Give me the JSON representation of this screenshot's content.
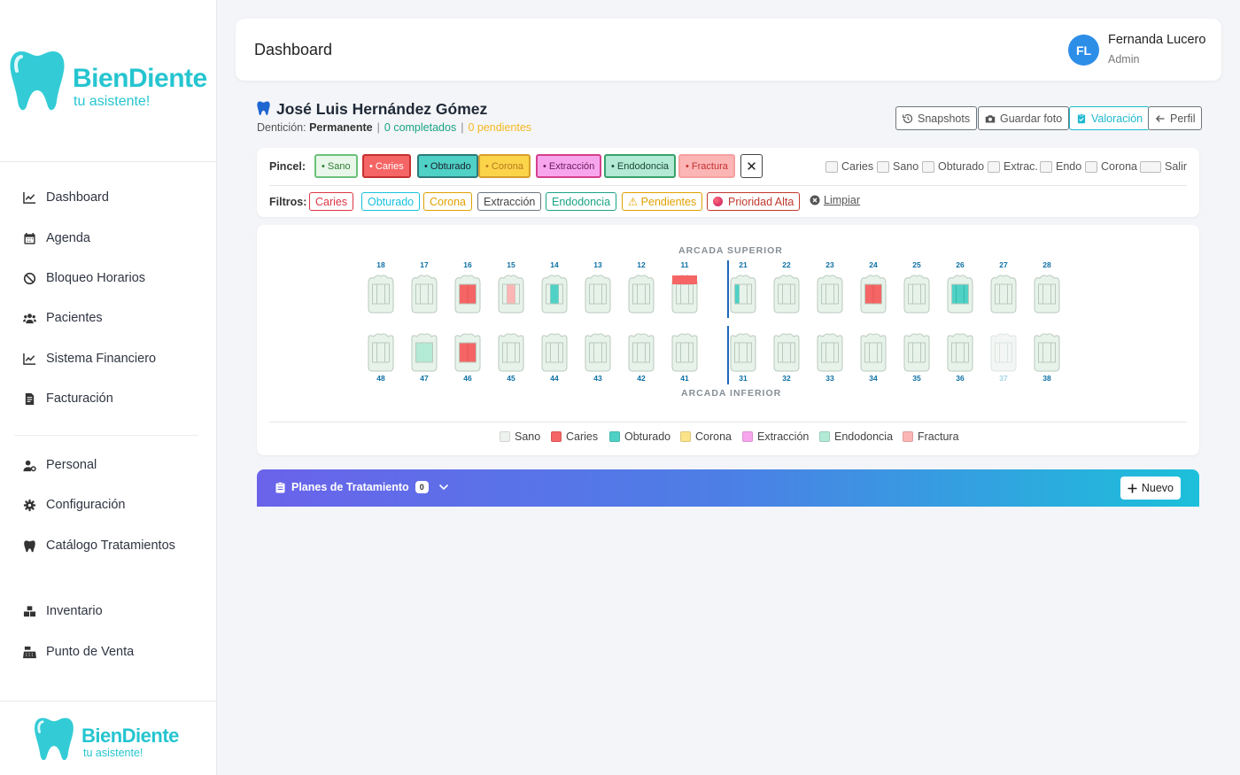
{
  "brand": {
    "name": "BienDiente",
    "tagline": "tu asistente!",
    "accent": "#25c5d0"
  },
  "sidebar": {
    "items": [
      {
        "label": "Dashboard",
        "icon": "chart-line-icon"
      },
      {
        "label": "Agenda",
        "icon": "calendar-icon"
      },
      {
        "label": "Bloqueo Horarios",
        "icon": "ban-icon"
      },
      {
        "label": "Pacientes",
        "icon": "users-icon"
      },
      {
        "label": "Sistema Financiero",
        "icon": "chart-line-icon"
      },
      {
        "label": "Facturación",
        "icon": "invoice-icon"
      },
      {
        "label": "Personal",
        "icon": "user-gear-icon"
      },
      {
        "label": "Configuración",
        "icon": "gear-icon"
      },
      {
        "label": "Catálogo Tratamientos",
        "icon": "tooth-icon"
      },
      {
        "label": "Inventario",
        "icon": "boxes-icon"
      },
      {
        "label": "Punto de Venta",
        "icon": "cash-register-icon"
      }
    ]
  },
  "header": {
    "title": "Dashboard",
    "user_initials": "FL",
    "user_name": "Fernanda Lucero",
    "user_role": "Admin"
  },
  "patient": {
    "name": "José Luis Hernández Gómez",
    "dentition_label": "Dentición:",
    "dentition": "Permanente",
    "completed": "0 completados",
    "pending": "0 pendientes",
    "separator": "|"
  },
  "actions": {
    "snapshots": "Snapshots",
    "save_photo": "Guardar foto",
    "assessment": "Valoración",
    "profile": "Perfil"
  },
  "brush": {
    "label": "Pincel:",
    "options": [
      {
        "label": "• Sano",
        "bg": "#e8f7ea",
        "border": "#6cc17a",
        "color": "#2e7d32"
      },
      {
        "label": "• Caries",
        "bg": "#f56565",
        "border": "#c53030",
        "color": "#ffffff"
      },
      {
        "label": "• Obturado",
        "bg": "#4fd1c5",
        "border": "#2c7a7b",
        "color": "#1a202c"
      },
      {
        "label": "• Corona",
        "bg": "#fbd44a",
        "border": "#d69e2e",
        "color": "#b7791f"
      },
      {
        "label": "• Extracción",
        "bg": "#f7a6ee",
        "border": "#d53f8c",
        "color": "#6b1a5a"
      },
      {
        "label": "• Endodoncia",
        "bg": "#b2ead6",
        "border": "#38a169",
        "color": "#1a4731"
      },
      {
        "label": "• Fractura",
        "bg": "#fcb5b5",
        "border": "#f5a0a0",
        "color": "#c53030"
      }
    ],
    "clear": "✕"
  },
  "toggles": [
    {
      "label": "Caries"
    },
    {
      "label": "Sano"
    },
    {
      "label": "Obturado"
    },
    {
      "label": "Extrac."
    },
    {
      "label": "Endo"
    },
    {
      "label": "Corona"
    },
    {
      "label": "Salir"
    }
  ],
  "filters": {
    "label": "Filtros:",
    "items": [
      {
        "label": "Caries",
        "color": "#dc3545"
      },
      {
        "label": "Obturado",
        "color": "#17c1dd"
      },
      {
        "label": "Corona",
        "color": "#e0a100"
      },
      {
        "label": "Extracción",
        "color": "#555555"
      },
      {
        "label": "Endodoncia",
        "color": "#1aa385"
      },
      {
        "label": "⚠ Pendientes",
        "color": "#e0a100"
      },
      {
        "label": "Prioridad Alta",
        "color": "#c0392b"
      }
    ],
    "clear": "Limpiar"
  },
  "odontogram": {
    "upper_label": "ARCADA SUPERIOR",
    "lower_label": "ARCADA INFERIOR",
    "upper": [
      {
        "n": "18",
        "s": "sano"
      },
      {
        "n": "17",
        "s": "sano"
      },
      {
        "n": "16",
        "s": "caries"
      },
      {
        "n": "15",
        "s": "fractura"
      },
      {
        "n": "14",
        "s": "obturado"
      },
      {
        "n": "13",
        "s": "sano"
      },
      {
        "n": "12",
        "s": "sano"
      },
      {
        "n": "11",
        "s": "caries-top"
      },
      {
        "n": "21",
        "s": "obturado-left"
      },
      {
        "n": "22",
        "s": "sano"
      },
      {
        "n": "23",
        "s": "sano"
      },
      {
        "n": "24",
        "s": "caries"
      },
      {
        "n": "25",
        "s": "sano"
      },
      {
        "n": "26",
        "s": "obturado-wide"
      },
      {
        "n": "27",
        "s": "sano"
      },
      {
        "n": "28",
        "s": "sano"
      }
    ],
    "lower": [
      {
        "n": "48",
        "s": "sano"
      },
      {
        "n": "47",
        "s": "endodoncia"
      },
      {
        "n": "46",
        "s": "caries"
      },
      {
        "n": "45",
        "s": "sano"
      },
      {
        "n": "44",
        "s": "sano"
      },
      {
        "n": "43",
        "s": "sano"
      },
      {
        "n": "42",
        "s": "sano"
      },
      {
        "n": "41",
        "s": "sano"
      },
      {
        "n": "31",
        "s": "sano"
      },
      {
        "n": "32",
        "s": "sano"
      },
      {
        "n": "33",
        "s": "sano"
      },
      {
        "n": "34",
        "s": "sano"
      },
      {
        "n": "35",
        "s": "sano"
      },
      {
        "n": "36",
        "s": "sano"
      },
      {
        "n": "37",
        "s": "extraccion"
      },
      {
        "n": "38",
        "s": "sano"
      }
    ],
    "legend": [
      {
        "label": "Sano",
        "color": "#eef2ef"
      },
      {
        "label": "Caries",
        "color": "#f56565"
      },
      {
        "label": "Obturado",
        "color": "#4fd1c5"
      },
      {
        "label": "Corona",
        "color": "#fbe38a"
      },
      {
        "label": "Extracción",
        "color": "#f7a6ee"
      },
      {
        "label": "Endodoncia",
        "color": "#b2ead6"
      },
      {
        "label": "Fractura",
        "color": "#fcb5b5"
      }
    ]
  },
  "plans": {
    "title": "Planes de Tratamiento",
    "count": "0",
    "new": "Nuevo"
  }
}
